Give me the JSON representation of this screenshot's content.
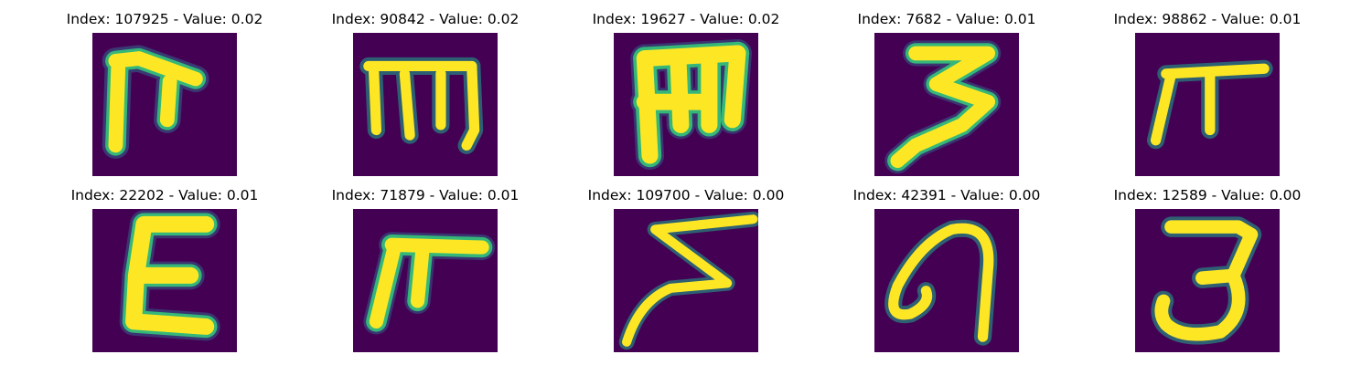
{
  "figure": {
    "background": "#ffffff",
    "image_background": "#440154",
    "stroke_colors": [
      "#fde725",
      "#b5de2b",
      "#35b779",
      "#1f9e89",
      "#31688e"
    ],
    "panels": [
      {
        "title": "Index: 107925 - Value: 0.02",
        "glyph": "pi-f"
      },
      {
        "title": "Index: 90842 - Value: 0.02",
        "glyph": "m-bar"
      },
      {
        "title": "Index: 19627 - Value: 0.02",
        "glyph": "m-bold"
      },
      {
        "title": "Index: 7682 - Value: 0.01",
        "glyph": "three-z"
      },
      {
        "title": "Index: 98862 - Value: 0.01",
        "glyph": "pi-thin"
      },
      {
        "title": "Index: 22202 - Value: 0.01",
        "glyph": "epsilon"
      },
      {
        "title": "Index: 71879 - Value: 0.01",
        "glyph": "pi-f2"
      },
      {
        "title": "Index: 109700 - Value: 0.00",
        "glyph": "zigzag"
      },
      {
        "title": "Index: 42391 - Value: 0.00",
        "glyph": "loop-a"
      },
      {
        "title": "Index: 12589 - Value: 0.00",
        "glyph": "three"
      }
    ]
  }
}
